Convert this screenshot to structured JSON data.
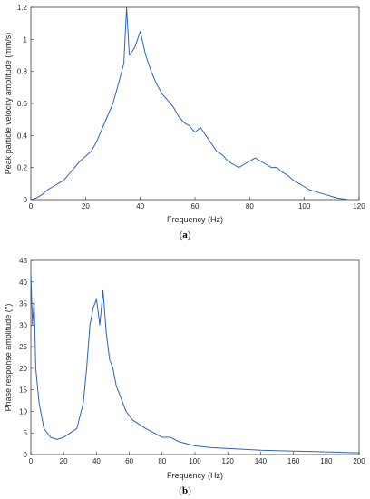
{
  "colors": {
    "series": "#2a64b8",
    "axis": "#262626",
    "background": "#ffffff"
  },
  "chart_data": [
    {
      "type": "line",
      "caption_letter": "a",
      "xlabel": "Frequency (Hz)",
      "ylabel": "Peak particle velocity amplitude (mm/s)",
      "xlim": [
        0,
        120
      ],
      "ylim": [
        0,
        1.2
      ],
      "xticks": [
        "0",
        "20",
        "40",
        "60",
        "80",
        "100",
        "120"
      ],
      "yticks": [
        "0",
        "0.2",
        "0.4",
        "0.6",
        "0.8",
        "1",
        "1.2"
      ],
      "grid": false,
      "series": [
        {
          "x": [
            0,
            2,
            4,
            6,
            8,
            10,
            12,
            14,
            16,
            18,
            20,
            22,
            24,
            26,
            28,
            30,
            32,
            34,
            35,
            36,
            38,
            40,
            42,
            44,
            46,
            48,
            50,
            52,
            54,
            56,
            58,
            60,
            62,
            64,
            66,
            68,
            70,
            72,
            74,
            76,
            78,
            80,
            82,
            84,
            86,
            88,
            90,
            92,
            94,
            96,
            98,
            100,
            102,
            104,
            106,
            108,
            110,
            112,
            114,
            116
          ],
          "values": [
            0.0,
            0.01,
            0.03,
            0.06,
            0.08,
            0.1,
            0.12,
            0.16,
            0.2,
            0.24,
            0.27,
            0.3,
            0.36,
            0.44,
            0.52,
            0.6,
            0.72,
            0.85,
            1.2,
            0.9,
            0.95,
            1.05,
            0.9,
            0.8,
            0.72,
            0.66,
            0.62,
            0.58,
            0.52,
            0.48,
            0.46,
            0.42,
            0.45,
            0.4,
            0.35,
            0.3,
            0.28,
            0.24,
            0.22,
            0.2,
            0.22,
            0.24,
            0.26,
            0.24,
            0.22,
            0.2,
            0.2,
            0.17,
            0.15,
            0.12,
            0.1,
            0.08,
            0.06,
            0.05,
            0.04,
            0.03,
            0.02,
            0.01,
            0.005,
            0.0
          ]
        }
      ]
    },
    {
      "type": "line",
      "caption_letter": "b",
      "xlabel": "Frequency (Hz)",
      "ylabel": "Phase response amplitude (°)",
      "xlim": [
        0,
        200
      ],
      "ylim": [
        0,
        45
      ],
      "xticks": [
        "0",
        "20",
        "40",
        "60",
        "80",
        "100",
        "120",
        "140",
        "160",
        "180",
        "200"
      ],
      "yticks": [
        "0",
        "5",
        "10",
        "15",
        "20",
        "25",
        "30",
        "35",
        "40",
        "45"
      ],
      "grid": false,
      "series": [
        {
          "x": [
            0,
            1,
            2,
            3,
            5,
            8,
            12,
            16,
            20,
            24,
            28,
            32,
            34,
            36,
            38,
            40,
            42,
            44,
            46,
            48,
            50,
            52,
            55,
            58,
            62,
            66,
            70,
            75,
            80,
            85,
            90,
            95,
            100,
            110,
            120,
            130,
            140,
            150,
            160,
            170,
            180,
            190,
            200
          ],
          "values": [
            42.0,
            30.0,
            36.0,
            20.0,
            12.0,
            6.0,
            4.0,
            3.5,
            4.0,
            5.0,
            6.0,
            12.0,
            20.0,
            30.0,
            34.0,
            36.0,
            30.0,
            38.0,
            28.0,
            22.0,
            20.0,
            16.0,
            13.0,
            10.0,
            8.0,
            7.0,
            6.0,
            5.0,
            4.0,
            4.0,
            3.0,
            2.5,
            2.0,
            1.6,
            1.4,
            1.2,
            1.0,
            0.9,
            0.8,
            0.7,
            0.6,
            0.5,
            0.4
          ]
        }
      ]
    }
  ]
}
